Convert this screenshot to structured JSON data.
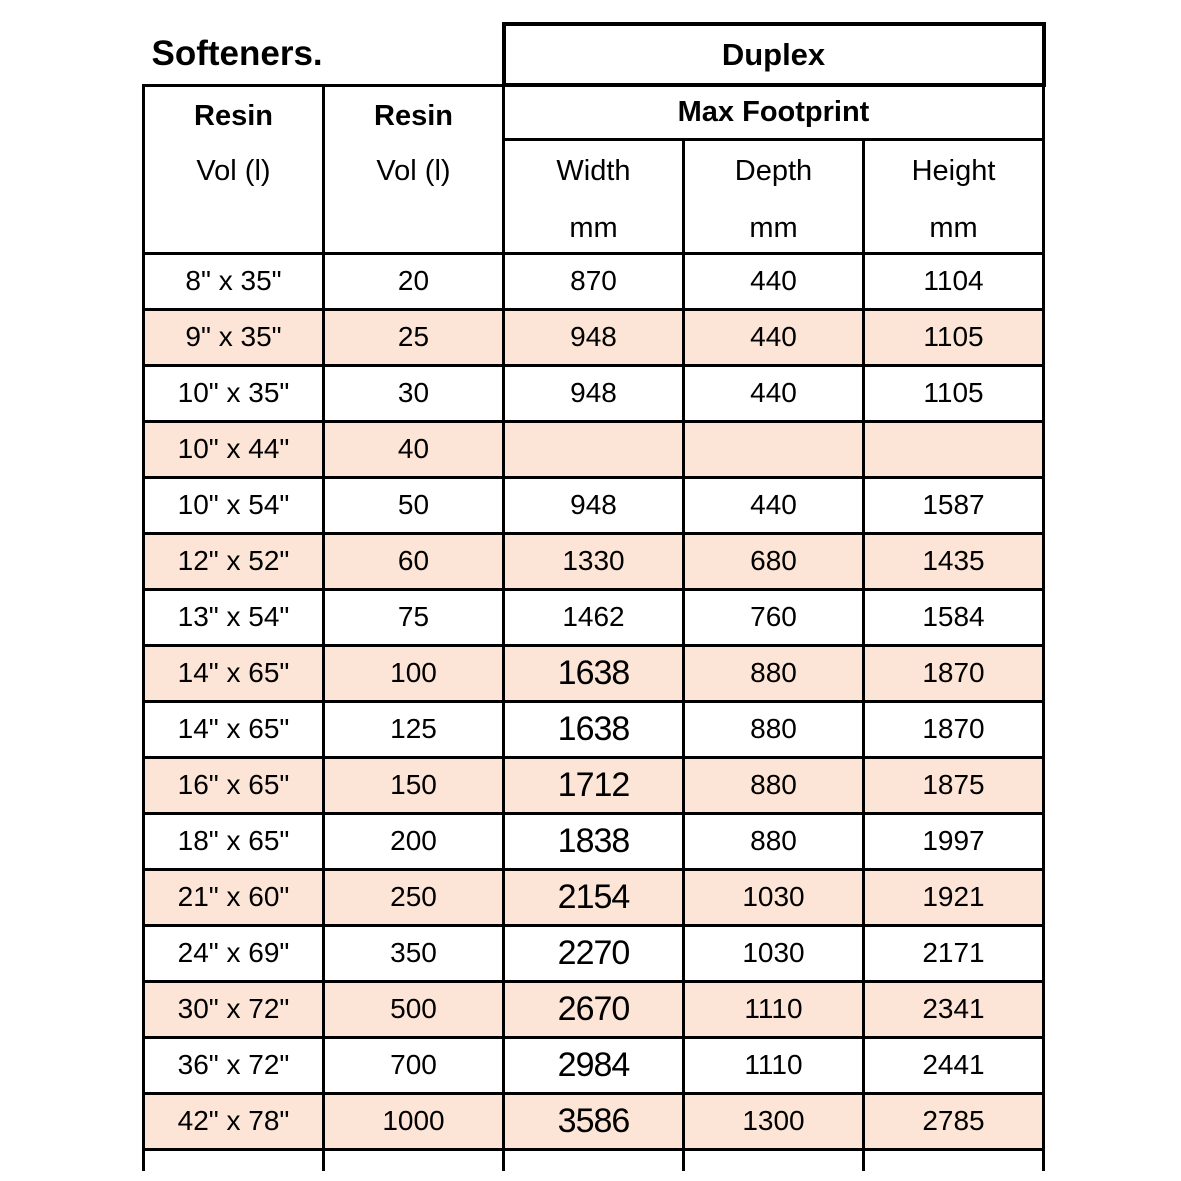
{
  "title": "Softeners.",
  "header": {
    "duplex_label": "Duplex",
    "max_footprint_label": "Max Footprint",
    "resin_col1": {
      "line1": "Resin",
      "line2": "Vol (l)"
    },
    "resin_col2": {
      "line1": "Resin",
      "line2": "Vol (l)"
    },
    "sub_columns": [
      {
        "label": "Width",
        "unit": "mm"
      },
      {
        "label": "Depth",
        "unit": "mm"
      },
      {
        "label": "Height",
        "unit": "mm"
      }
    ]
  },
  "colors": {
    "stripe": "#fce4d6",
    "border": "#000000",
    "background": "#ffffff",
    "text": "#000000"
  },
  "rows": [
    {
      "size": "8\" x 35\"",
      "vol": "20",
      "width": "870",
      "depth": "440",
      "height": "1104"
    },
    {
      "size": "9\" x 35\"",
      "vol": "25",
      "width": "948",
      "depth": "440",
      "height": "1105"
    },
    {
      "size": "10\" x 35\"",
      "vol": "30",
      "width": "948",
      "depth": "440",
      "height": "1105"
    },
    {
      "size": "10\" x 44\"",
      "vol": "40",
      "width": "",
      "depth": "",
      "height": ""
    },
    {
      "size": "10\" x 54\"",
      "vol": "50",
      "width": "948",
      "depth": "440",
      "height": "1587"
    },
    {
      "size": "12\" x 52\"",
      "vol": "60",
      "width": "1330",
      "depth": "680",
      "height": "1435"
    },
    {
      "size": "13\" x 54\"",
      "vol": "75",
      "width": "1462",
      "depth": "760",
      "height": "1584"
    },
    {
      "size": "14\" x 65\"",
      "vol": "100",
      "width": "1638",
      "depth": "880",
      "height": "1870"
    },
    {
      "size": "14\" x 65\"",
      "vol": "125",
      "width": "1638",
      "depth": "880",
      "height": "1870"
    },
    {
      "size": "16\" x 65\"",
      "vol": "150",
      "width": "1712",
      "depth": "880",
      "height": "1875"
    },
    {
      "size": "18\" x 65\"",
      "vol": "200",
      "width": "1838",
      "depth": "880",
      "height": "1997"
    },
    {
      "size": "21\" x 60\"",
      "vol": "250",
      "width": "2154",
      "depth": "1030",
      "height": "1921"
    },
    {
      "size": "24\" x 69\"",
      "vol": "350",
      "width": "2270",
      "depth": "1030",
      "height": "2171"
    },
    {
      "size": "30\" x 72\"",
      "vol": "500",
      "width": "2670",
      "depth": "1110",
      "height": "2341"
    },
    {
      "size": "36\" x 72\"",
      "vol": "700",
      "width": "2984",
      "depth": "1110",
      "height": "2441"
    },
    {
      "size": "42\" x 78\"",
      "vol": "1000",
      "width": "3586",
      "depth": "1300",
      "height": "2785"
    }
  ]
}
